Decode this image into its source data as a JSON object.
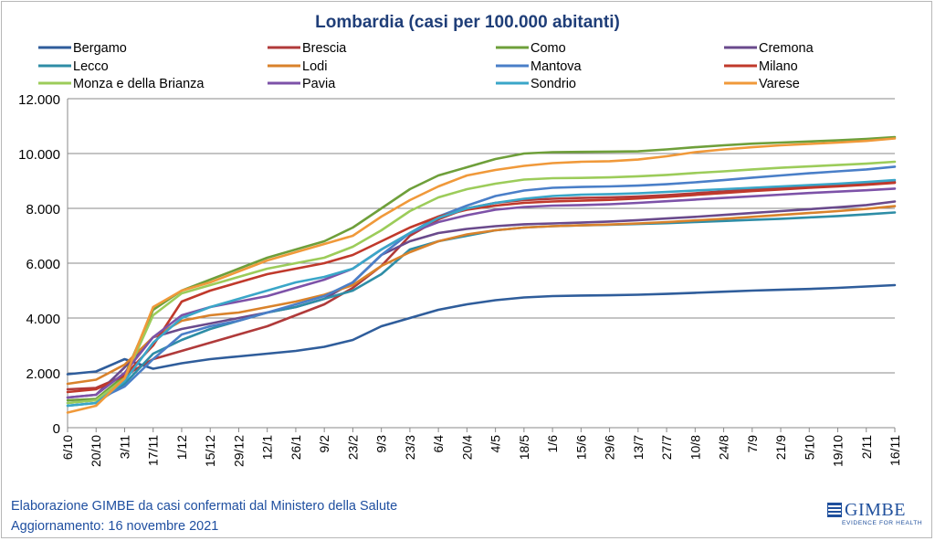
{
  "header": {
    "title": "Lombardia (casi per 100.000 abitanti)"
  },
  "footer": {
    "source": "Elaborazione GIMBE da casi confermati dal Ministero della Salute",
    "updated": "Aggiornamento: 16 novembre 2021"
  },
  "logo": {
    "name": "GIMBE",
    "tagline": "EVIDENCE FOR HEALTH"
  },
  "chart_data": {
    "type": "line",
    "title": "Lombardia (casi per 100.000 abitanti)",
    "xlabel": "",
    "ylabel": "",
    "ylim": [
      0,
      12000
    ],
    "y_ticks": [
      0,
      2000,
      4000,
      6000,
      8000,
      10000,
      12000
    ],
    "y_tick_labels": [
      "0",
      "2.000",
      "4.000",
      "6.000",
      "8.000",
      "10.000",
      "12.000"
    ],
    "grid": true,
    "legend_position": "top",
    "x": [
      "6/10",
      "20/10",
      "3/11",
      "17/11",
      "1/12",
      "15/12",
      "29/12",
      "12/1",
      "26/1",
      "9/2",
      "23/2",
      "9/3",
      "23/3",
      "6/4",
      "20/4",
      "4/5",
      "18/5",
      "1/6",
      "15/6",
      "29/6",
      "13/7",
      "27/7",
      "10/8",
      "24/8",
      "7/9",
      "21/9",
      "5/10",
      "19/10",
      "2/11",
      "16/11"
    ],
    "series": [
      {
        "name": "Bergamo",
        "color": "#2f5d9b",
        "values": [
          1950,
          2050,
          2500,
          2150,
          2350,
          2500,
          2600,
          2700,
          2800,
          2950,
          3200,
          3700,
          4000,
          4300,
          4500,
          4650,
          4750,
          4800,
          4820,
          4830,
          4850,
          4880,
          4920,
          4960,
          5000,
          5030,
          5060,
          5100,
          5150,
          5200
        ]
      },
      {
        "name": "Brescia",
        "color": "#b03a3a",
        "values": [
          1400,
          1450,
          1900,
          2500,
          2800,
          3100,
          3400,
          3700,
          4100,
          4500,
          5100,
          5900,
          7000,
          7600,
          8000,
          8200,
          8300,
          8350,
          8380,
          8400,
          8430,
          8480,
          8550,
          8620,
          8680,
          8740,
          8790,
          8840,
          8900,
          8960
        ]
      },
      {
        "name": "Como",
        "color": "#6e9f3a",
        "values": [
          1000,
          1050,
          1900,
          4300,
          5000,
          5400,
          5800,
          6200,
          6500,
          6800,
          7300,
          8000,
          8700,
          9200,
          9500,
          9800,
          10000,
          10050,
          10060,
          10070,
          10080,
          10150,
          10230,
          10300,
          10360,
          10400,
          10440,
          10480,
          10530,
          10600
        ]
      },
      {
        "name": "Cremona",
        "color": "#6a4a8c",
        "values": [
          1100,
          1200,
          2200,
          3300,
          3600,
          3800,
          4000,
          4200,
          4400,
          4700,
          5300,
          6300,
          6800,
          7100,
          7250,
          7350,
          7420,
          7450,
          7480,
          7520,
          7570,
          7630,
          7690,
          7760,
          7830,
          7900,
          7970,
          8040,
          8120,
          8250
        ]
      },
      {
        "name": "Lecco",
        "color": "#2e8da6",
        "values": [
          800,
          900,
          1600,
          2700,
          3200,
          3600,
          3900,
          4200,
          4400,
          4700,
          5000,
          5600,
          6500,
          6800,
          7000,
          7200,
          7300,
          7350,
          7380,
          7400,
          7430,
          7460,
          7500,
          7540,
          7580,
          7620,
          7670,
          7720,
          7780,
          7850
        ]
      },
      {
        "name": "Lodi",
        "color": "#d9822b",
        "values": [
          1600,
          1750,
          2300,
          3300,
          3900,
          4100,
          4200,
          4400,
          4600,
          4850,
          5200,
          5900,
          6400,
          6800,
          7050,
          7200,
          7300,
          7350,
          7380,
          7410,
          7450,
          7500,
          7560,
          7620,
          7690,
          7760,
          7830,
          7900,
          7980,
          8080
        ]
      },
      {
        "name": "Mantova",
        "color": "#4a7fc8",
        "values": [
          900,
          1000,
          1500,
          2500,
          3400,
          3700,
          3900,
          4200,
          4500,
          4800,
          5300,
          6300,
          7100,
          7700,
          8100,
          8450,
          8650,
          8750,
          8780,
          8800,
          8830,
          8880,
          8950,
          9030,
          9120,
          9200,
          9280,
          9350,
          9420,
          9520
        ]
      },
      {
        "name": "Milano",
        "color": "#c0392b",
        "values": [
          1300,
          1400,
          1900,
          3000,
          4600,
          5000,
          5300,
          5600,
          5800,
          6000,
          6300,
          6800,
          7300,
          7700,
          7950,
          8100,
          8200,
          8250,
          8280,
          8310,
          8360,
          8420,
          8490,
          8560,
          8630,
          8690,
          8750,
          8800,
          8860,
          8930
        ]
      },
      {
        "name": "Monza e della Brianza",
        "color": "#9ccc5a",
        "values": [
          900,
          1000,
          1800,
          4100,
          4900,
          5200,
          5500,
          5800,
          6000,
          6200,
          6600,
          7200,
          7900,
          8400,
          8700,
          8900,
          9050,
          9100,
          9110,
          9130,
          9170,
          9220,
          9290,
          9350,
          9420,
          9480,
          9530,
          9580,
          9630,
          9700
        ]
      },
      {
        "name": "Pavia",
        "color": "#7d52a8",
        "values": [
          1100,
          1200,
          2000,
          3300,
          4100,
          4400,
          4600,
          4800,
          5100,
          5400,
          5800,
          6500,
          7100,
          7500,
          7750,
          7950,
          8050,
          8100,
          8120,
          8150,
          8200,
          8260,
          8320,
          8380,
          8440,
          8500,
          8560,
          8610,
          8660,
          8720
        ]
      },
      {
        "name": "Sondrio",
        "color": "#3aa6c8",
        "values": [
          800,
          900,
          1700,
          3100,
          4000,
          4400,
          4700,
          5000,
          5300,
          5500,
          5800,
          6500,
          7100,
          7650,
          8000,
          8200,
          8350,
          8450,
          8500,
          8520,
          8550,
          8600,
          8650,
          8700,
          8750,
          8800,
          8850,
          8900,
          8960,
          9030
        ]
      },
      {
        "name": "Varese",
        "color": "#f0993a",
        "values": [
          550,
          800,
          1800,
          4400,
          5000,
          5300,
          5700,
          6100,
          6400,
          6700,
          7000,
          7700,
          8300,
          8800,
          9200,
          9400,
          9550,
          9650,
          9700,
          9720,
          9780,
          9900,
          10050,
          10150,
          10230,
          10300,
          10350,
          10400,
          10460,
          10550
        ]
      }
    ]
  }
}
